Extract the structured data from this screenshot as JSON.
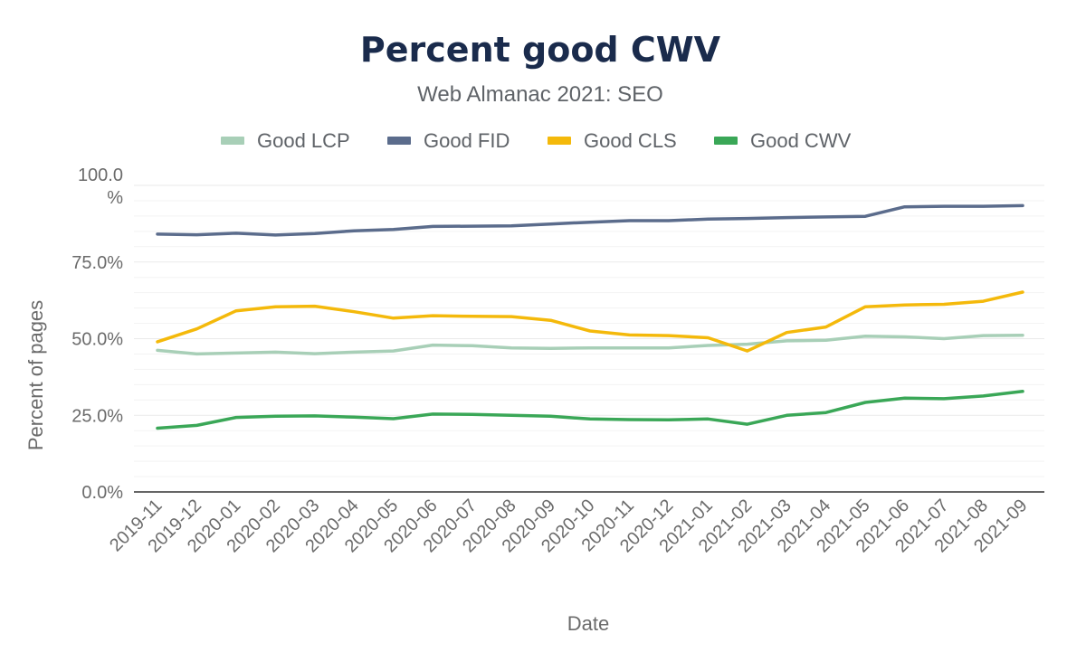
{
  "chart_data": {
    "type": "line",
    "title": "Percent good CWV",
    "subtitle": "Web Almanac 2021: SEO",
    "xlabel": "Date",
    "ylabel": "Percent of pages",
    "ylim": [
      0,
      100
    ],
    "yticks": [
      "0.0%",
      "25.0%",
      "50.0%",
      "75.0%",
      "100.0 %"
    ],
    "grid": true,
    "legend_position": "top",
    "x": [
      "2019-11",
      "2019-12",
      "2020-01",
      "2020-02",
      "2020-03",
      "2020-04",
      "2020-05",
      "2020-06",
      "2020-07",
      "2020-08",
      "2020-09",
      "2020-10",
      "2020-11",
      "2020-12",
      "2021-01",
      "2021-02",
      "2021-03",
      "2021-04",
      "2021-05",
      "2021-06",
      "2021-07",
      "2021-08",
      "2021-09"
    ],
    "series": [
      {
        "name": "Good LCP",
        "color": "#a8cfb7",
        "values": [
          46.2,
          45.0,
          45.3,
          45.6,
          45.1,
          45.6,
          46.0,
          47.9,
          47.7,
          47.0,
          46.8,
          47.0,
          47.0,
          47.0,
          47.8,
          48.2,
          49.3,
          49.5,
          50.8,
          50.6,
          50.0,
          51.0,
          51.1
        ]
      },
      {
        "name": "Good FID",
        "color": "#5b6c8c",
        "values": [
          84.1,
          83.9,
          84.4,
          83.8,
          84.3,
          85.2,
          85.6,
          86.6,
          86.7,
          86.8,
          87.4,
          88.0,
          88.5,
          88.5,
          89.0,
          89.2,
          89.5,
          89.7,
          89.9,
          93.0,
          93.2,
          93.2,
          93.4
        ]
      },
      {
        "name": "Good CLS",
        "color": "#f4b90b",
        "values": [
          49.0,
          53.2,
          59.1,
          60.4,
          60.6,
          58.8,
          56.7,
          57.5,
          57.3,
          57.2,
          56.0,
          52.5,
          51.2,
          51.0,
          50.3,
          46.0,
          52.0,
          53.8,
          60.4,
          61.0,
          61.2,
          62.2,
          65.2
        ]
      },
      {
        "name": "Good CWV",
        "color": "#3aa757",
        "values": [
          20.8,
          21.7,
          24.3,
          24.7,
          24.8,
          24.4,
          23.9,
          25.4,
          25.3,
          25.0,
          24.7,
          23.8,
          23.6,
          23.5,
          23.8,
          22.1,
          25.0,
          25.9,
          29.2,
          30.6,
          30.4,
          31.3,
          32.8
        ]
      }
    ]
  }
}
